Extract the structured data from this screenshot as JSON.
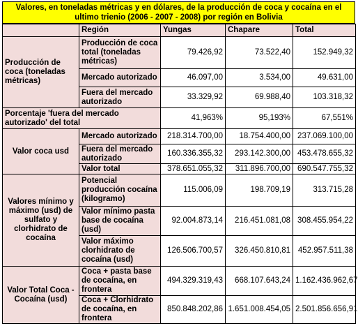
{
  "title": "Valores, en toneladas métricas y en dólares, de la producción de coca y cocaína en el ultimo trienio (2006 - 2007 - 2008) por región en Bolivia",
  "headers": {
    "region": "Región",
    "yungas": "Yungas",
    "chapare": "Chapare",
    "total": "Total"
  },
  "groups": {
    "produccion": "Producción de coca (toneladas métricas)",
    "porcentaje": "Porcentaje 'fuera del mercado autorizado' del total",
    "valor_coca": "Valor coca usd",
    "valores_min_max": "Valores mínimo y máximo (usd) de sulfato y clorhidrato de cocaína",
    "valor_total": "Valor Total Coca - Cocaína (usd)"
  },
  "rows": {
    "prod_total": {
      "label": "Producción de coca total (toneladas métricas)",
      "yungas": "79.426,92",
      "chapare": "73.522,40",
      "total": "152.949,32"
    },
    "prod_autorizado": {
      "label": "Mercado autorizado",
      "yungas": "46.097,00",
      "chapare": "3.534,00",
      "total": "49.631,00"
    },
    "prod_fuera": {
      "label": "Fuera del mercado autorizado",
      "yungas": "33.329,92",
      "chapare": "69.988,40",
      "total": "103.318,32"
    },
    "porcentaje": {
      "yungas": "41,963%",
      "chapare": "95,193%",
      "total": "67,551%"
    },
    "valor_autorizado": {
      "label": "Mercado autorizado",
      "yungas": "218.314.700,00",
      "chapare": "18.754.400,00",
      "total": "237.069.100,00"
    },
    "valor_fuera": {
      "label": "Fuera del mercado autorizado",
      "yungas": "160.336.355,32",
      "chapare": "293.142.300,00",
      "total": "453.478.655,32"
    },
    "valor_total": {
      "label": "Valor total",
      "yungas": "378.651.055,32",
      "chapare": "311.896.700,00",
      "total": "690.547.755,32"
    },
    "potencial": {
      "label": "Potencial producción cocaína (kilogramo)",
      "yungas": "115.006,09",
      "chapare": "198.709,19",
      "total": "313.715,28"
    },
    "min_pasta": {
      "label": "Valor mínimo pasta base de cocaína (usd)",
      "yungas": "92.004.873,14",
      "chapare": "216.451.081,08",
      "total": "308.455.954,22"
    },
    "max_clorhidrato": {
      "label": "Valor máximo clorhidrato de cocaína (usd)",
      "yungas": "126.506.700,57",
      "chapare": "326.450.810,81",
      "total": "452.957.511,38"
    },
    "frontera_pasta": {
      "label": "Coca + pasta base de cocaína, en frontera",
      "yungas": "494.329.319,43",
      "chapare": "668.107.643,24",
      "total": "1.162.436.962,67"
    },
    "frontera_clorhidrato": {
      "label": "Coca + Clorhidrato de cocaína, en frontera",
      "yungas": "850.848.202,86",
      "chapare": "1.651.008.454,05",
      "total": "2.501.856.656,91"
    }
  },
  "colors": {
    "title_bg": "#ffff00",
    "header_bg": "#f2dcdb",
    "cell_bg": "#ffffff"
  }
}
